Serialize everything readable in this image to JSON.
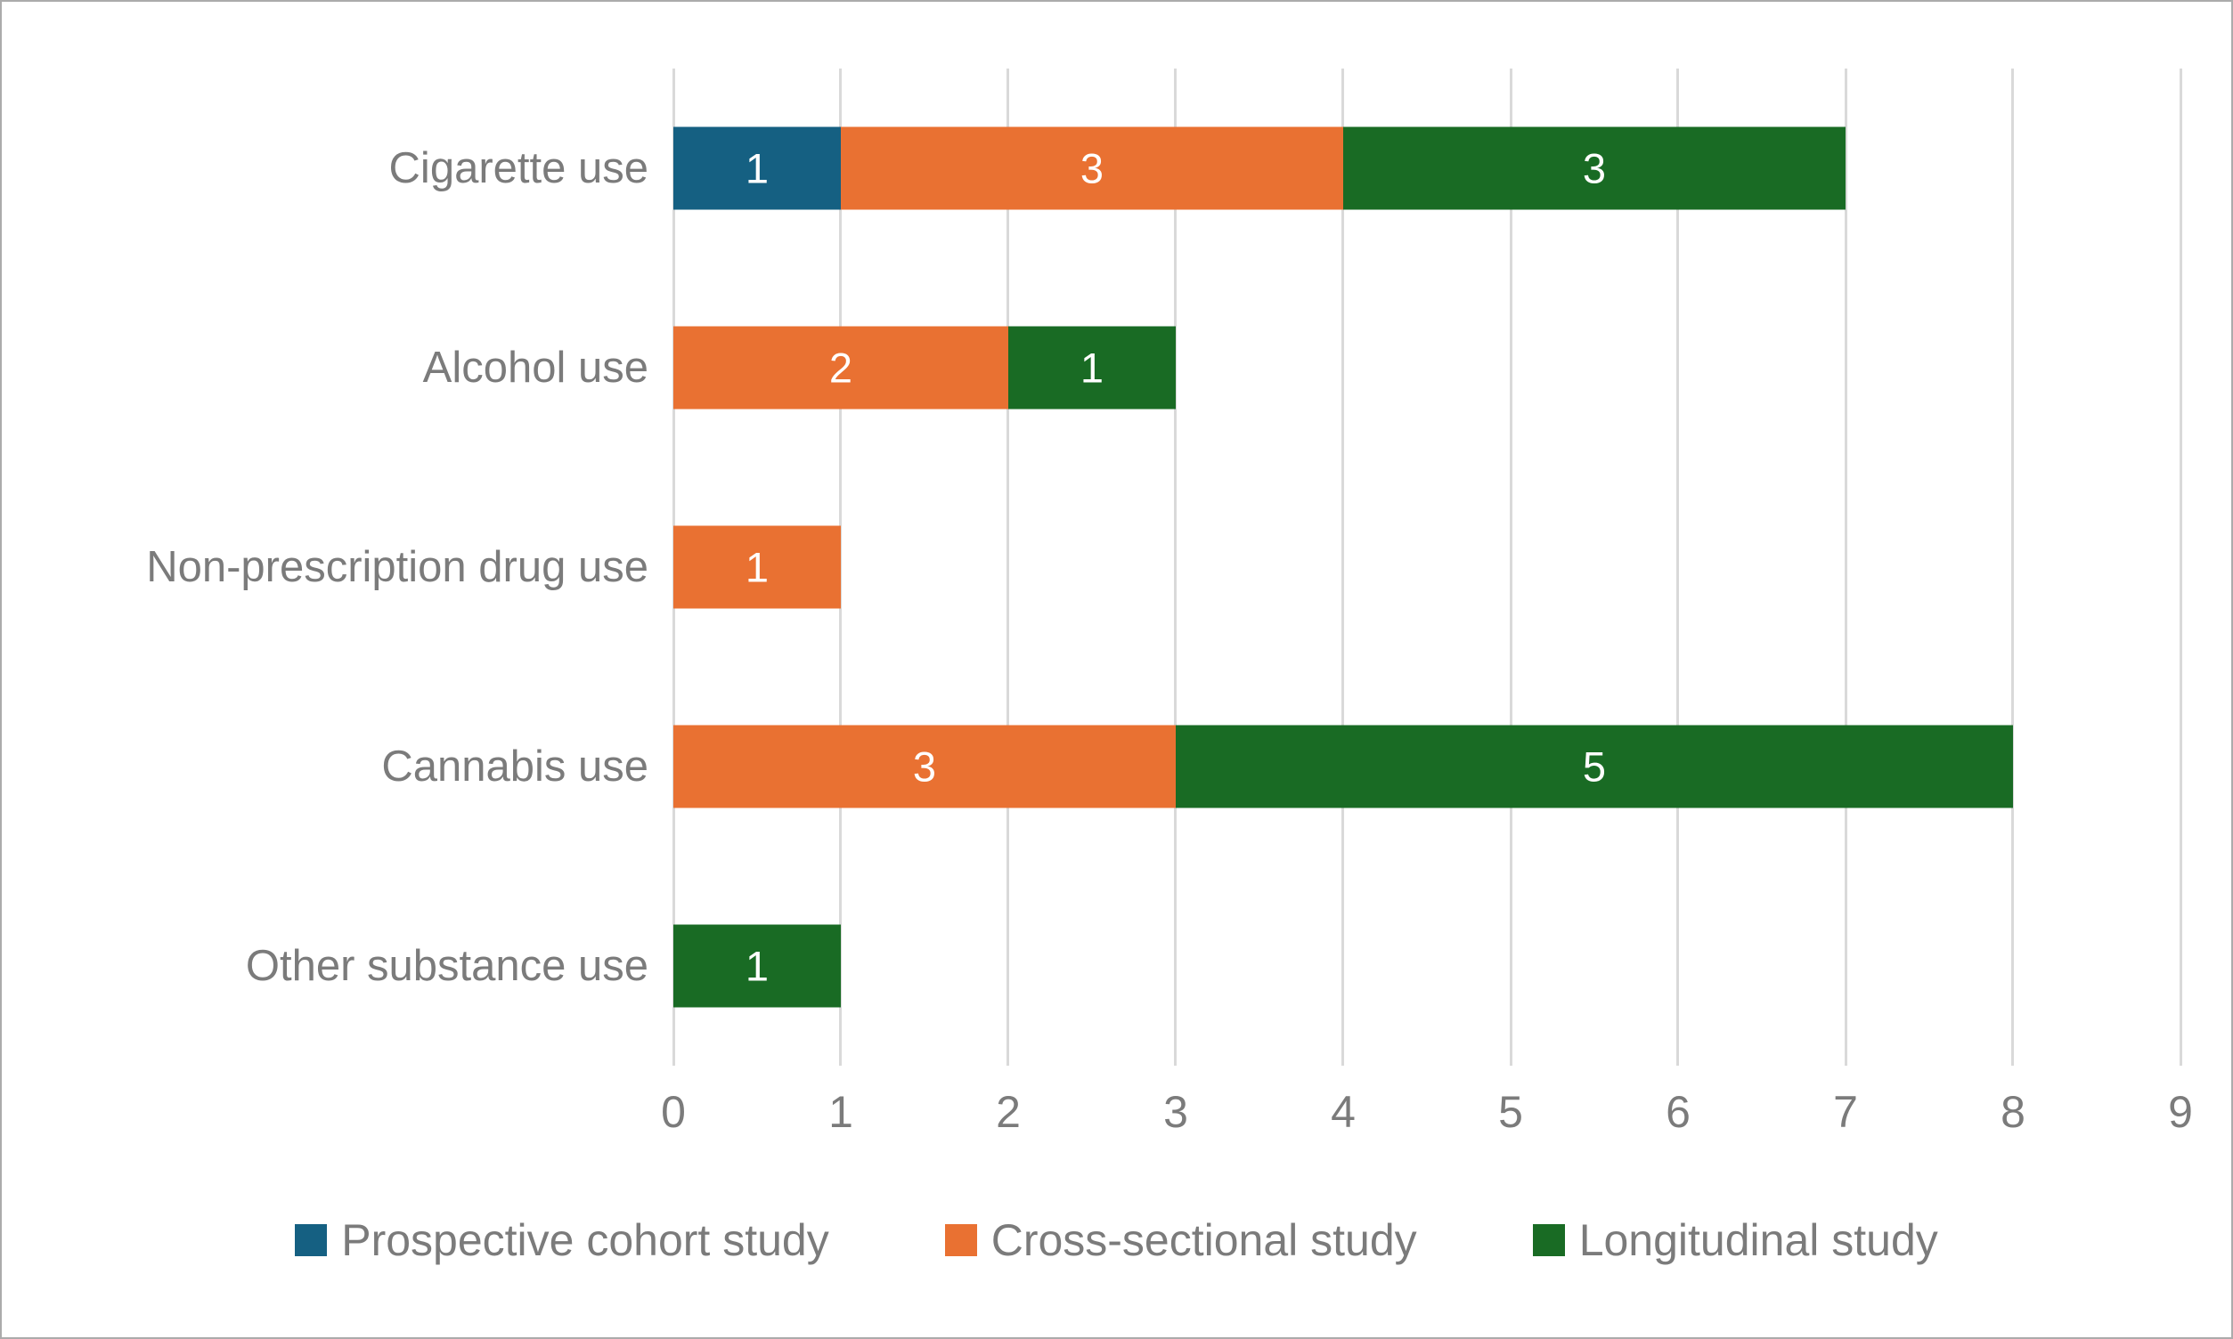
{
  "chart_data": {
    "type": "bar",
    "orientation": "horizontal",
    "stacked": true,
    "title": "",
    "xlabel": "",
    "ylabel": "",
    "categories": [
      "Cigarette use",
      "Alcohol use",
      "Non-prescription drug use",
      "Cannabis use",
      "Other substance use"
    ],
    "series": [
      {
        "name": "Prospective cohort study",
        "color": "#156082",
        "values": [
          1,
          0,
          0,
          0,
          0
        ]
      },
      {
        "name": "Cross-sectional study",
        "color": "#E97132",
        "values": [
          3,
          2,
          1,
          3,
          0
        ]
      },
      {
        "name": "Longitudinal study",
        "color": "#196B24",
        "values": [
          3,
          1,
          0,
          5,
          1
        ]
      }
    ],
    "totals": [
      7,
      3,
      1,
      8,
      1
    ],
    "xlim": [
      0,
      9
    ],
    "xticks": [
      0,
      1,
      2,
      3,
      4,
      5,
      6,
      7,
      8,
      9
    ],
    "grid": true,
    "legend_position": "bottom",
    "data_labels_visible": true
  },
  "style": {
    "grid_color": "#D9D9D9",
    "label_color": "#7B7B7B",
    "data_label_color": "#FFFFFF",
    "frame_border_color": "#ABABAB",
    "background_color": "#FFFFFF"
  }
}
